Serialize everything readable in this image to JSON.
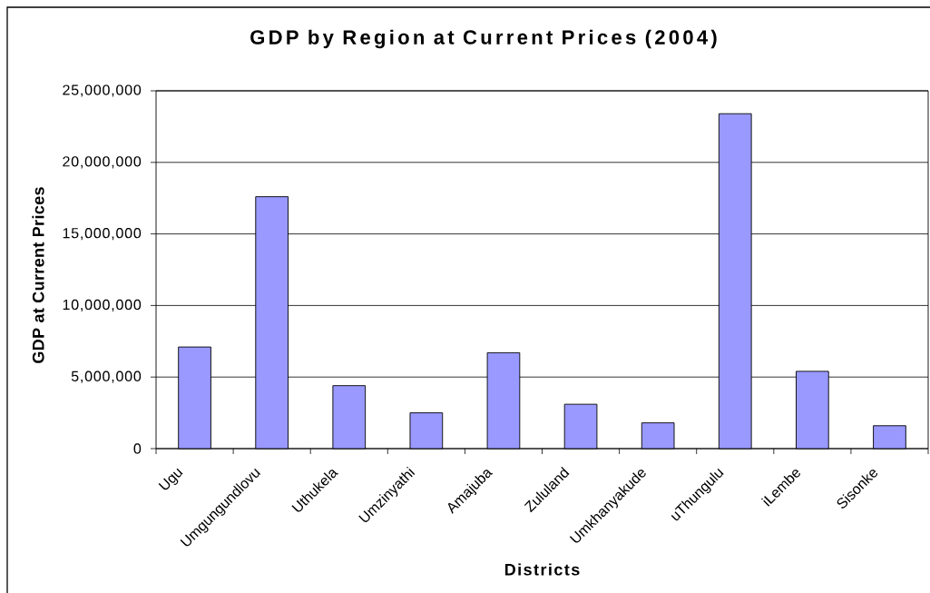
{
  "chart_data": {
    "type": "bar",
    "title": "GDP by Region at Current Prices (2004)",
    "xlabel": "Districts",
    "ylabel": "GDP at Current Prices",
    "categories": [
      "Ugu",
      "Umgungundlovu",
      "Uthukela",
      "Umzinyathi",
      "Amajuba",
      "Zululand",
      "Umkhanyakude",
      "uThungulu",
      "iLembe",
      "Sisonke"
    ],
    "values": [
      7100000,
      17600000,
      4400000,
      2500000,
      6700000,
      3100000,
      1800000,
      23400000,
      5400000,
      1600000
    ],
    "color": "#9999ff",
    "ylim": [
      0,
      25000000
    ],
    "yticks": [
      0,
      {
        "value": 5000000,
        "label": "5,000,000"
      },
      {
        "value": 10000000,
        "label": "10,000,000"
      },
      {
        "value": 15000000,
        "label": "15,000,000"
      },
      {
        "value": 20000000,
        "label": "20,000,000"
      },
      {
        "value": 25000000,
        "label": "25,000,000"
      }
    ],
    "grid": "y"
  }
}
